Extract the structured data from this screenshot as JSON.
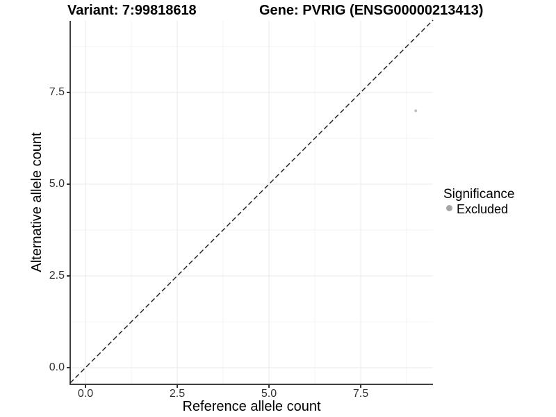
{
  "header": {
    "variant_title": "Variant: 7:99818618",
    "gene_title": "Gene: PVRIG (ENSG00000213413)"
  },
  "axes": {
    "x_label": "Reference allele count",
    "y_label": "Alternative allele count",
    "x_tick_labels": [
      "0.0",
      "2.5",
      "5.0",
      "7.5"
    ],
    "y_tick_labels": [
      "0.0",
      "2.5",
      "5.0",
      "7.5"
    ]
  },
  "legend": {
    "title": "Significance",
    "items": [
      {
        "label": "Excluded",
        "color": "#a6a6a6"
      }
    ]
  },
  "colors": {
    "background": "#ffffff",
    "grid_major": "#e8e8e8",
    "grid_minor": "#f3f3f3",
    "axis_line": "#404040",
    "reference_line": "#1a1a1a",
    "excluded_point": "#c0c0c0"
  },
  "chart_data": {
    "type": "scatter",
    "titles": [
      "Variant: 7:99818618",
      "Gene: PVRIG (ENSG00000213413)"
    ],
    "xlabel": "Reference allele count",
    "ylabel": "Alternative allele count",
    "xlim": [
      -0.42,
      9.47
    ],
    "ylim": [
      -0.42,
      9.47
    ],
    "x_ticks": [
      0.0,
      2.5,
      5.0,
      7.5
    ],
    "y_ticks": [
      0.0,
      2.5,
      5.0,
      7.5
    ],
    "grid": "major+minor",
    "legend_position": "right",
    "legend_title": "Significance",
    "series": [
      {
        "name": "Excluded",
        "color": "#c0c0c0",
        "size": 2,
        "points": [
          {
            "x": 9,
            "y": 7
          }
        ]
      }
    ],
    "reference_line": {
      "slope": 1,
      "intercept": 0,
      "style": "dashed",
      "color": "#1a1a1a"
    }
  }
}
